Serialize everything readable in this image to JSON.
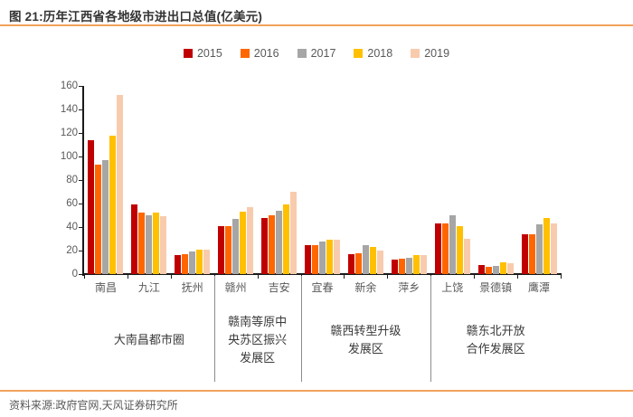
{
  "title": "图 21:历年江西省各地级市进出口总值(亿美元)",
  "source": "资料来源:政府官网,天风证券研究所",
  "accent_color": "#F2A25C",
  "chart_data": {
    "type": "bar",
    "title": "历年江西省各地级市进出口总值(亿美元)",
    "xlabel": "",
    "ylabel": "",
    "ylim": [
      0,
      160
    ],
    "yticks": [
      0,
      20,
      40,
      60,
      80,
      100,
      120,
      140,
      160
    ],
    "grid": false,
    "legend_position": "top-center",
    "categories": [
      "南昌",
      "九江",
      "抚州",
      "赣州",
      "吉安",
      "宜春",
      "新余",
      "萍乡",
      "上饶",
      "景德镇",
      "鹰潭"
    ],
    "series": [
      {
        "name": "2015",
        "color": "#C00000",
        "values": [
          114,
          59,
          16,
          41,
          48,
          25,
          17,
          12,
          43,
          8,
          34
        ]
      },
      {
        "name": "2016",
        "color": "#FF6600",
        "values": [
          93,
          52,
          17,
          41,
          50,
          25,
          18,
          13,
          43,
          6,
          34
        ]
      },
      {
        "name": "2017",
        "color": "#A6A6A6",
        "values": [
          97,
          50,
          19,
          47,
          54,
          28,
          25,
          14,
          50,
          7,
          42
        ]
      },
      {
        "name": "2018",
        "color": "#FFC000",
        "values": [
          118,
          52,
          21,
          53,
          59,
          29,
          23,
          16,
          41,
          10,
          48
        ]
      },
      {
        "name": "2019",
        "color": "#F8CBAD",
        "values": [
          152,
          49,
          21,
          57,
          70,
          29,
          20,
          16,
          30,
          9,
          43
        ]
      }
    ],
    "groups": [
      {
        "label_lines": [
          "大南昌都市圈"
        ],
        "span": 3
      },
      {
        "label_lines": [
          "赣南等原中",
          "央苏区振兴",
          "发展区"
        ],
        "span": 2
      },
      {
        "label_lines": [
          "赣西转型升级",
          "发展区"
        ],
        "span": 3
      },
      {
        "label_lines": [
          "赣东北开放",
          "合作发展区"
        ],
        "span": 3
      }
    ]
  }
}
